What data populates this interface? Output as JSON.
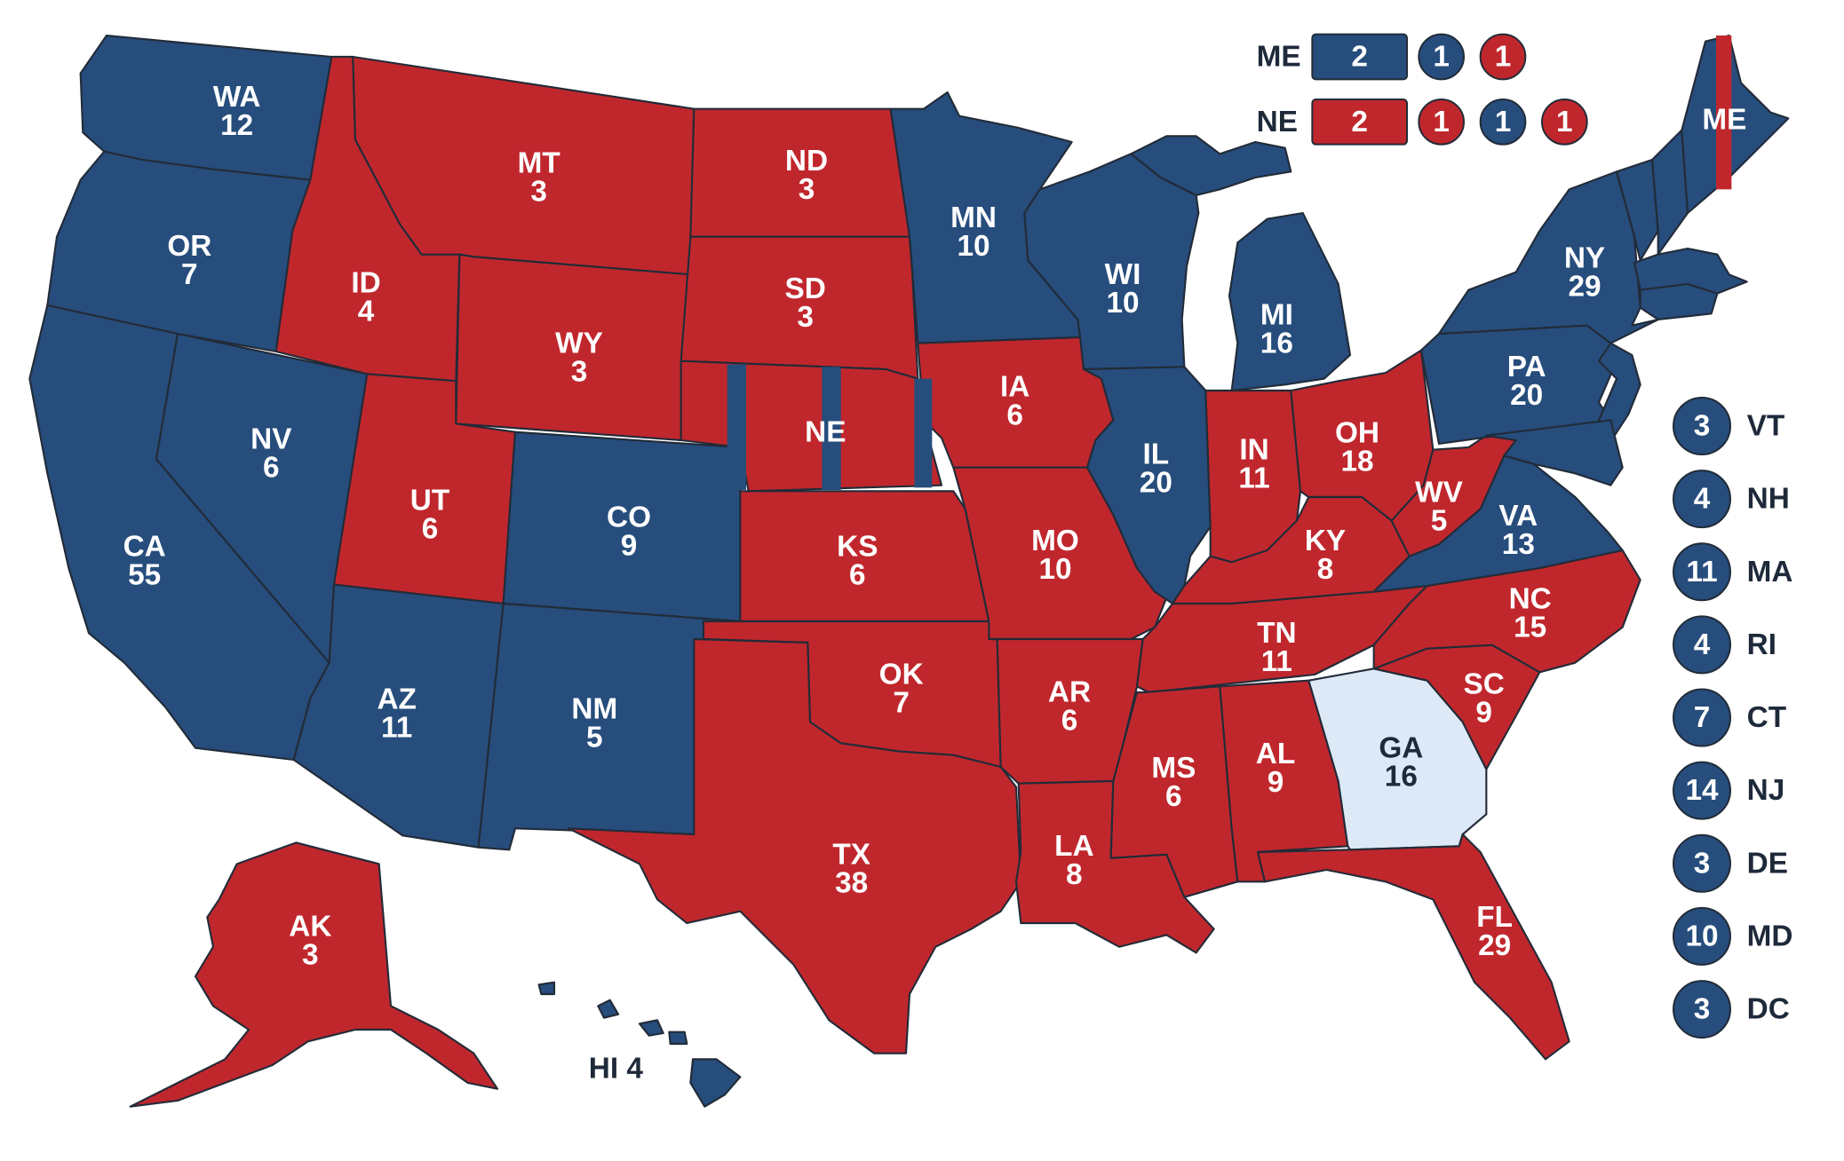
{
  "colors": {
    "dem": "#264d7c",
    "rep": "#c0272d",
    "tossup": "#dde9f7",
    "border": "#222b38",
    "label_dark": "#1e2a3a"
  },
  "states": {
    "WA": {
      "abbr": "WA",
      "ev": "12",
      "party": "dem"
    },
    "OR": {
      "abbr": "OR",
      "ev": "7",
      "party": "dem"
    },
    "CA": {
      "abbr": "CA",
      "ev": "55",
      "party": "dem"
    },
    "NV": {
      "abbr": "NV",
      "ev": "6",
      "party": "dem"
    },
    "ID": {
      "abbr": "ID",
      "ev": "4",
      "party": "rep"
    },
    "MT": {
      "abbr": "MT",
      "ev": "3",
      "party": "rep"
    },
    "WY": {
      "abbr": "WY",
      "ev": "3",
      "party": "rep"
    },
    "UT": {
      "abbr": "UT",
      "ev": "6",
      "party": "rep"
    },
    "AZ": {
      "abbr": "AZ",
      "ev": "11",
      "party": "dem"
    },
    "CO": {
      "abbr": "CO",
      "ev": "9",
      "party": "dem"
    },
    "NM": {
      "abbr": "NM",
      "ev": "5",
      "party": "dem"
    },
    "ND": {
      "abbr": "ND",
      "ev": "3",
      "party": "rep"
    },
    "SD": {
      "abbr": "SD",
      "ev": "3",
      "party": "rep"
    },
    "NE": {
      "abbr": "NE",
      "ev": "",
      "party": "rep"
    },
    "KS": {
      "abbr": "KS",
      "ev": "6",
      "party": "rep"
    },
    "OK": {
      "abbr": "OK",
      "ev": "7",
      "party": "rep"
    },
    "TX": {
      "abbr": "TX",
      "ev": "38",
      "party": "rep"
    },
    "MN": {
      "abbr": "MN",
      "ev": "10",
      "party": "dem"
    },
    "IA": {
      "abbr": "IA",
      "ev": "6",
      "party": "rep"
    },
    "MO": {
      "abbr": "MO",
      "ev": "10",
      "party": "rep"
    },
    "AR": {
      "abbr": "AR",
      "ev": "6",
      "party": "rep"
    },
    "LA": {
      "abbr": "LA",
      "ev": "8",
      "party": "rep"
    },
    "WI": {
      "abbr": "WI",
      "ev": "10",
      "party": "dem"
    },
    "IL": {
      "abbr": "IL",
      "ev": "20",
      "party": "dem"
    },
    "MI": {
      "abbr": "MI",
      "ev": "16",
      "party": "dem"
    },
    "IN": {
      "abbr": "IN",
      "ev": "11",
      "party": "rep"
    },
    "OH": {
      "abbr": "OH",
      "ev": "18",
      "party": "rep"
    },
    "KY": {
      "abbr": "KY",
      "ev": "8",
      "party": "rep"
    },
    "TN": {
      "abbr": "TN",
      "ev": "11",
      "party": "rep"
    },
    "MS": {
      "abbr": "MS",
      "ev": "6",
      "party": "rep"
    },
    "AL": {
      "abbr": "AL",
      "ev": "9",
      "party": "rep"
    },
    "GA": {
      "abbr": "GA",
      "ev": "16",
      "party": "tossup"
    },
    "FL": {
      "abbr": "FL",
      "ev": "29",
      "party": "rep"
    },
    "SC": {
      "abbr": "SC",
      "ev": "9",
      "party": "rep"
    },
    "NC": {
      "abbr": "NC",
      "ev": "15",
      "party": "rep"
    },
    "VA": {
      "abbr": "VA",
      "ev": "13",
      "party": "dem"
    },
    "WV": {
      "abbr": "WV",
      "ev": "5",
      "party": "rep"
    },
    "PA": {
      "abbr": "PA",
      "ev": "20",
      "party": "dem"
    },
    "NY": {
      "abbr": "NY",
      "ev": "29",
      "party": "dem"
    },
    "ME": {
      "abbr": "ME",
      "ev": "",
      "party": "dem"
    },
    "AK": {
      "abbr": "AK",
      "ev": "3",
      "party": "rep"
    },
    "HI": {
      "abbr": "HI 4",
      "ev": "",
      "party": "dem"
    }
  },
  "district_boxes": [
    {
      "state": "ME",
      "statewide": {
        "value": "2",
        "party": "dem"
      },
      "districts": [
        {
          "value": "1",
          "party": "dem"
        },
        {
          "value": "1",
          "party": "rep"
        }
      ]
    },
    {
      "state": "NE",
      "statewide": {
        "value": "2",
        "party": "rep"
      },
      "districts": [
        {
          "value": "1",
          "party": "rep"
        },
        {
          "value": "1",
          "party": "dem"
        },
        {
          "value": "1",
          "party": "rep"
        }
      ]
    }
  ],
  "small_states": [
    {
      "abbr": "VT",
      "ev": "3",
      "party": "dem"
    },
    {
      "abbr": "NH",
      "ev": "4",
      "party": "dem"
    },
    {
      "abbr": "MA",
      "ev": "11",
      "party": "dem"
    },
    {
      "abbr": "RI",
      "ev": "4",
      "party": "dem"
    },
    {
      "abbr": "CT",
      "ev": "7",
      "party": "dem"
    },
    {
      "abbr": "NJ",
      "ev": "14",
      "party": "dem"
    },
    {
      "abbr": "DE",
      "ev": "3",
      "party": "dem"
    },
    {
      "abbr": "MD",
      "ev": "10",
      "party": "dem"
    },
    {
      "abbr": "DC",
      "ev": "3",
      "party": "dem"
    }
  ]
}
